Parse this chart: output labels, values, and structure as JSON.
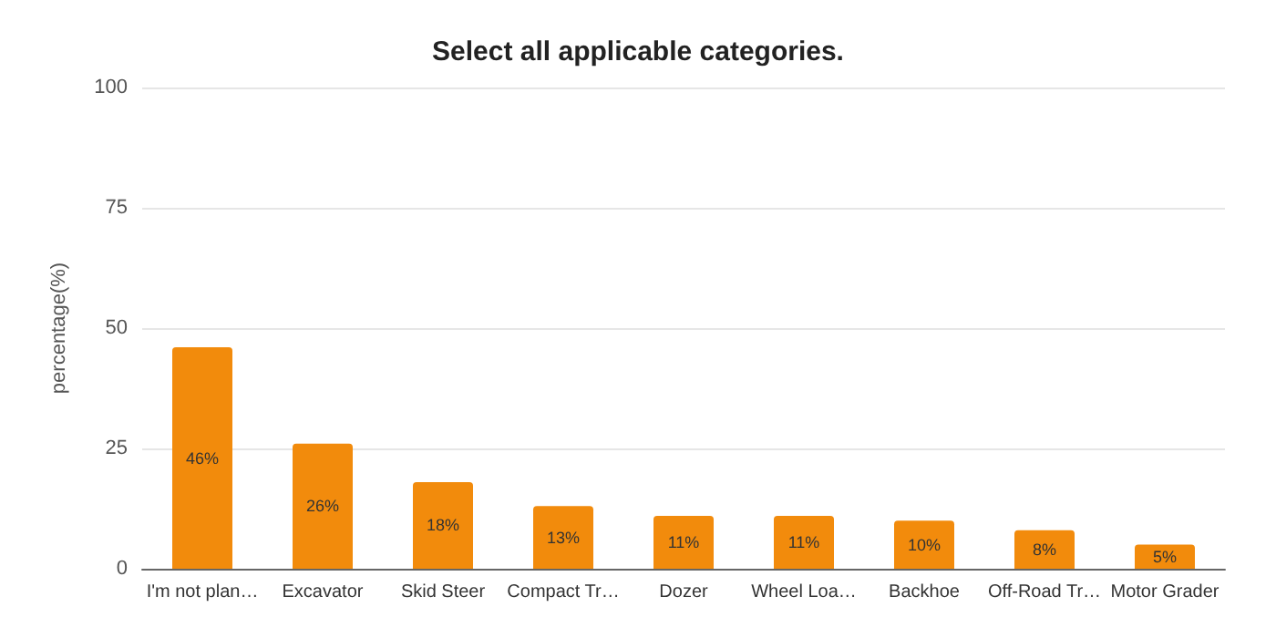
{
  "chart_data": {
    "type": "bar",
    "title": "Select all applicable categories.",
    "ylabel": "percentage(%)",
    "categories": [
      "I'm not plan…",
      "Excavator",
      "Skid Steer",
      "Compact Tr…",
      "Dozer",
      "Wheel Loa…",
      "Backhoe",
      "Off-Road Tr…",
      "Motor Grader"
    ],
    "values": [
      46,
      26,
      18,
      13,
      11,
      11,
      10,
      8,
      5
    ],
    "value_labels": [
      "46%",
      "26%",
      "18%",
      "13%",
      "11%",
      "11%",
      "10%",
      "8%",
      "5%"
    ],
    "color": "#f28b0c",
    "ylim": [
      0,
      100
    ],
    "yticks": [
      0,
      25,
      50,
      75,
      100
    ],
    "grid": "y"
  }
}
